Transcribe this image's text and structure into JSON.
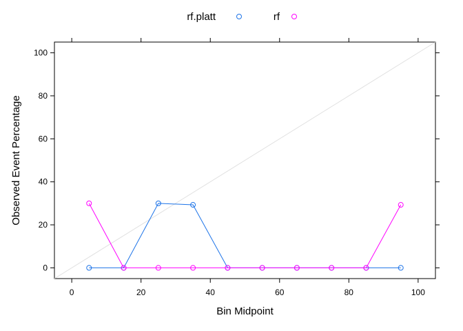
{
  "chart_data": {
    "type": "line",
    "xlabel": "Bin Midpoint",
    "ylabel": "Observed Event Percentage",
    "xlim": [
      -5,
      105
    ],
    "ylim": [
      -5,
      105
    ],
    "x_ticks": [
      0,
      20,
      40,
      60,
      80,
      100
    ],
    "y_ticks": [
      0,
      20,
      40,
      60,
      80,
      100
    ],
    "x_tick_labels": [
      "0",
      "20",
      "40",
      "60",
      "80",
      "100"
    ],
    "y_tick_labels": [
      "0",
      "20",
      "40",
      "60",
      "80",
      "100"
    ],
    "reference_line": {
      "from": [
        -5,
        -5
      ],
      "to": [
        105,
        105
      ],
      "color": "#e0e0e0"
    },
    "legend_position": "top",
    "grid": false,
    "series": [
      {
        "name": "rf.platt",
        "color": "#1c73e8",
        "x": [
          5,
          15,
          25,
          35,
          45,
          55,
          65,
          75,
          85,
          95
        ],
        "y": [
          0,
          0,
          30,
          29.3,
          0,
          0,
          0,
          0,
          0,
          0
        ]
      },
      {
        "name": "rf",
        "color": "#ff00ff",
        "x": [
          5,
          15,
          25,
          35,
          45,
          55,
          65,
          75,
          85,
          95
        ],
        "y": [
          30,
          0,
          0,
          0,
          0,
          0,
          0,
          0,
          0,
          29.3
        ]
      }
    ]
  }
}
